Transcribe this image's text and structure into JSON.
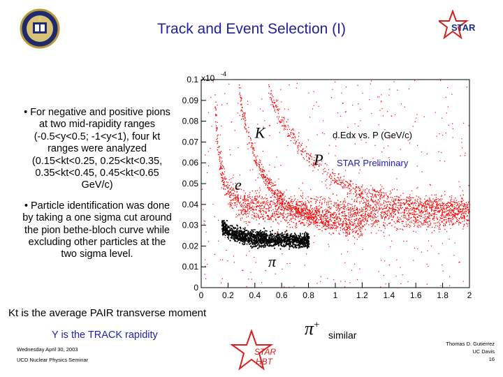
{
  "slide": {
    "title": "Track and Event Selection (I)",
    "bullets": [
      "• For negative and positive pions at two mid-rapidity ranges (-0.5<y<0.5; -1<y<1), four kt ranges were analyzed (0.15<kt<0.25, 0.25<kt<0.35, 0.35<kt<0.45, 0.45<kt<0.65 GeV/c)",
      "• Particle identification was done by taking a one sigma cut around the pion bethe-bloch curve while excluding other particles at the two sigma level."
    ],
    "kt_note": "Kt is the average PAIR transverse moment",
    "rapidity_note": "Y is the TRACK rapidity",
    "similar_note": "similar",
    "pi_plus_symbol": "π",
    "pi_plus_charge": "+",
    "date": "Wednesday April 30, 2003",
    "seminar": "UCD Nuclear Physics Seminar",
    "author": "Thomas D. Gutierrez",
    "affiliation": "UC Davis",
    "page_number": "16",
    "logo_text_top": "STAR",
    "logo_text_bottom": [
      "STAR",
      "HBT"
    ]
  },
  "chart_data": {
    "type": "scatter",
    "title": "d.Edx vs. P (GeV/c)",
    "annotation": "STAR Preliminary",
    "y_multiplier_label": "x10",
    "y_multiplier_exp": "-4",
    "xlim": [
      0,
      2
    ],
    "ylim": [
      0,
      0.1
    ],
    "x_ticks": [
      "0",
      "0.2",
      "0.4",
      "0.6",
      "0.8",
      "1",
      "1.2",
      "1.4",
      "1.6",
      "1.8",
      "2"
    ],
    "y_ticks": [
      "0",
      "0.01",
      "0.02",
      "0.03",
      "0.04",
      "0.05",
      "0.06",
      "0.07",
      "0.08",
      "0.09",
      "0.1"
    ],
    "particle_labels": [
      {
        "text": "K",
        "x": 0.4,
        "y": 0.072
      },
      {
        "text": "P",
        "x": 0.84,
        "y": 0.059
      },
      {
        "text": "e",
        "x": 0.25,
        "y": 0.047
      },
      {
        "text": "π",
        "x": 0.5,
        "y": 0.01
      }
    ],
    "series": [
      {
        "color": "#ff0000",
        "points": [
          [
            0.1,
            0.09
          ],
          [
            0.12,
            0.07
          ],
          [
            0.15,
            0.055
          ],
          [
            0.2,
            0.045
          ],
          [
            0.3,
            0.04
          ],
          [
            0.5,
            0.038
          ],
          [
            0.8,
            0.036
          ],
          [
            1.0,
            0.036
          ],
          [
            1.5,
            0.036
          ],
          [
            2.0,
            0.036
          ]
        ]
      },
      {
        "color": "#ff0000",
        "points": [
          [
            0.28,
            0.095
          ],
          [
            0.32,
            0.08
          ],
          [
            0.4,
            0.062
          ],
          [
            0.5,
            0.05
          ],
          [
            0.6,
            0.042
          ],
          [
            0.8,
            0.034
          ],
          [
            1.0,
            0.03
          ],
          [
            1.2,
            0.028
          ]
        ]
      },
      {
        "color": "#ff0000",
        "points": [
          [
            0.5,
            0.095
          ],
          [
            0.6,
            0.08
          ],
          [
            0.8,
            0.062
          ],
          [
            1.0,
            0.052
          ],
          [
            1.2,
            0.046
          ],
          [
            1.5,
            0.042
          ],
          [
            2.0,
            0.038
          ]
        ]
      },
      {
        "color": "#000000",
        "points": [
          [
            0.15,
            0.03
          ],
          [
            0.2,
            0.027
          ],
          [
            0.3,
            0.025
          ],
          [
            0.4,
            0.024
          ],
          [
            0.6,
            0.023
          ],
          [
            0.8,
            0.023
          ]
        ]
      }
    ]
  },
  "colors": {
    "title": "#1f1f9a",
    "rapidity_note": "#1f1fb0",
    "logo_red": "#d62020",
    "logo_blue": "#1f2a8c",
    "points_red": "#ff0000",
    "pion_band": "#000000"
  }
}
